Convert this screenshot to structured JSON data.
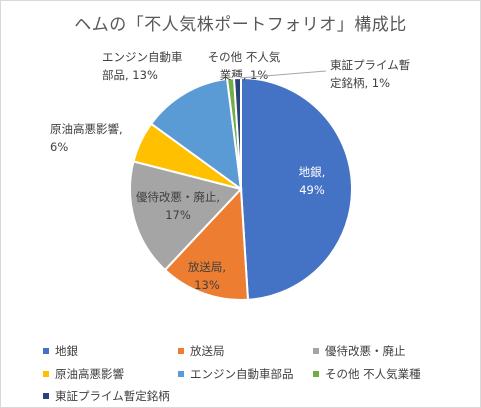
{
  "chart_data": {
    "type": "pie",
    "title": "ヘムの「不人気株ポートフォリオ」構成比",
    "slices": [
      {
        "name": "地銀",
        "value": 49,
        "color": "#4472C4",
        "label_line1": "地銀,",
        "label_line2": "49%"
      },
      {
        "name": "放送局",
        "value": 13,
        "color": "#ED7D31",
        "label_line1": "放送局,",
        "label_line2": "13%"
      },
      {
        "name": "優待改悪・廃止",
        "value": 17,
        "color": "#A5A5A5",
        "label_line1": "優待改悪・廃止,",
        "label_line2": "17%"
      },
      {
        "name": "原油高悪影響",
        "value": 6,
        "color": "#FFC000",
        "label_line1": "原油高悪影響,",
        "label_line2": "6%"
      },
      {
        "name": "エンジン自動車部品",
        "value": 13,
        "color": "#5B9BD5",
        "label_line1": "エンジン自動車",
        "label_line2": "部品, 13%"
      },
      {
        "name": "その他 不人気業種",
        "value": 1,
        "color": "#70AD47",
        "label_line1": "その他 不人気",
        "label_line2": "業種, 1%"
      },
      {
        "name": "東証プライム暫定銘柄",
        "value": 1,
        "color": "#264478",
        "label_line1": "東証プライム暫",
        "label_line2": "定銘柄, 1%"
      }
    ],
    "legend_position": "bottom"
  }
}
